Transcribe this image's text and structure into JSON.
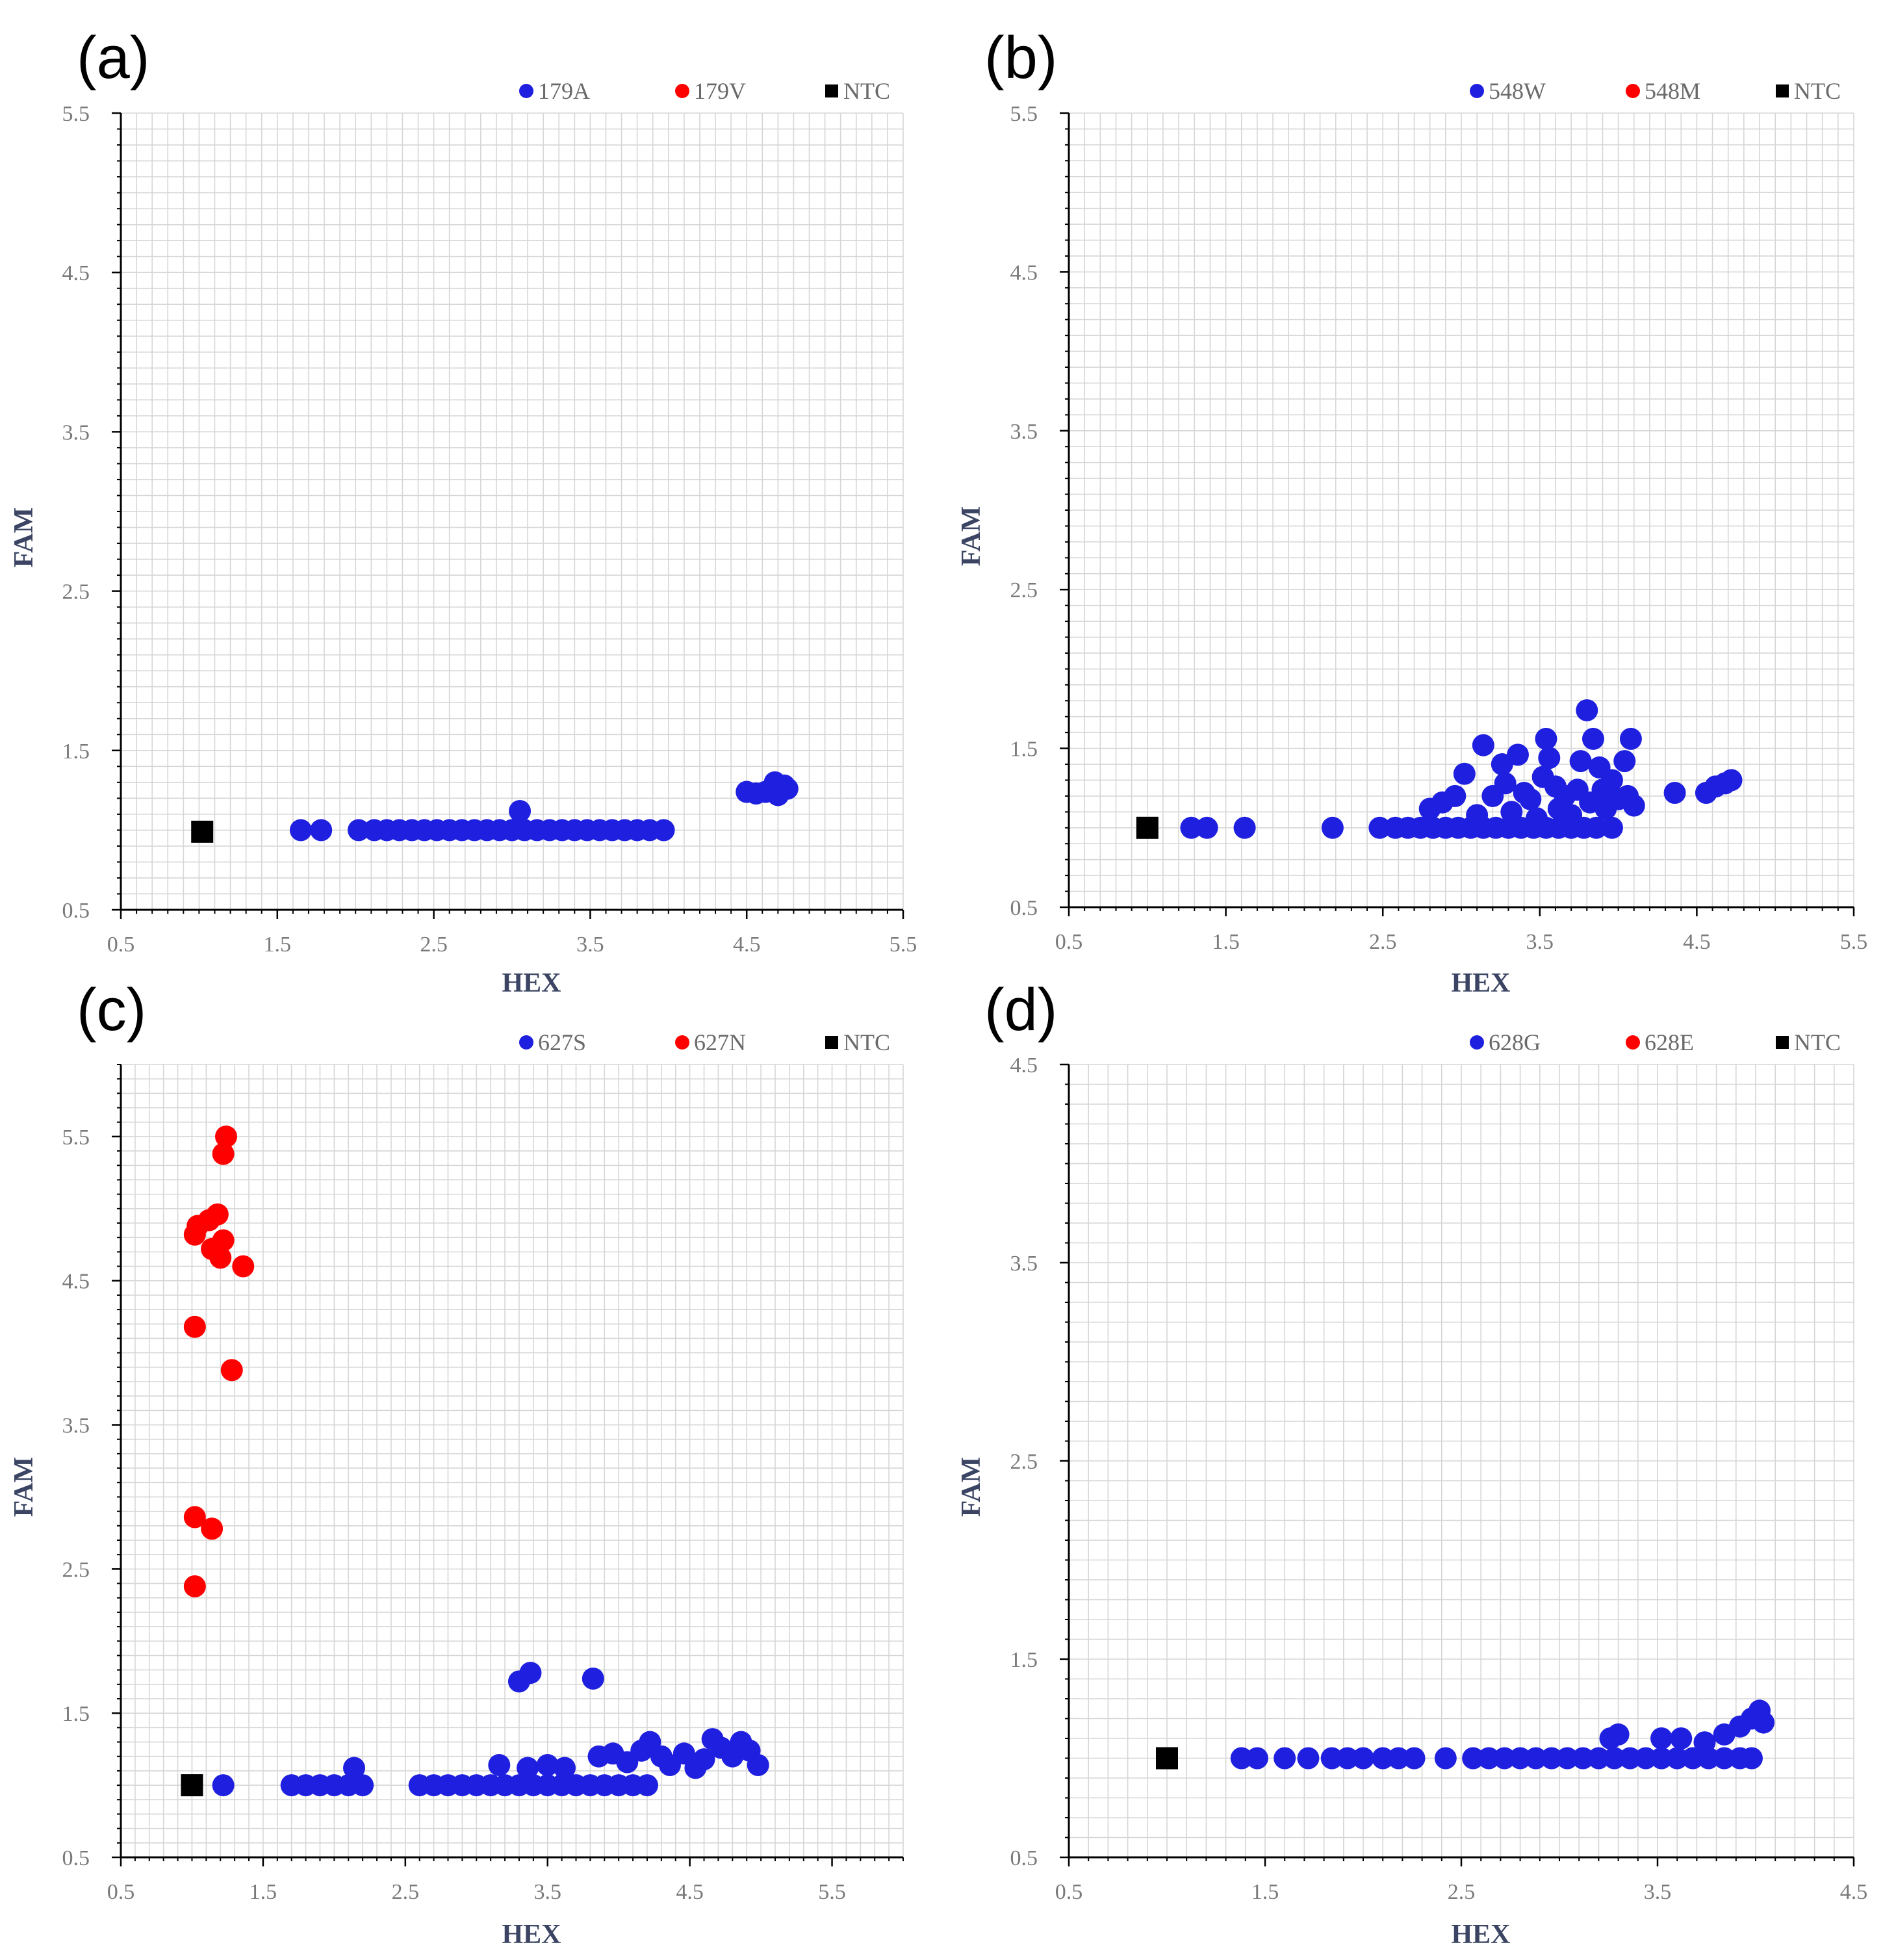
{
  "colors": {
    "series_a": "#1f1fe0",
    "series_b": "#ff0000",
    "ntc": "#000000",
    "grid": "#d6d6d6"
  },
  "chart_data": [
    {
      "type": "scatter",
      "panel_label": "(a)",
      "xlabel": "HEX",
      "ylabel": "FAM",
      "xlim": [
        0.5,
        5.5
      ],
      "ylim": [
        0.5,
        5.5
      ],
      "x_ticks": [
        "0.5",
        "1.5",
        "2.5",
        "3.5",
        "4.5",
        "5.5"
      ],
      "y_ticks": [
        "0.5",
        "1.5",
        "2.5",
        "3.5",
        "4.5",
        "5.5"
      ],
      "grid": true,
      "legend_position": "top-right",
      "legend": [
        "179A",
        "179V",
        "NTC"
      ],
      "series": [
        {
          "name": "179A",
          "marker": "circle",
          "color": "#1f1fe0",
          "points": [
            [
              1.65,
              1.0
            ],
            [
              1.78,
              1.0
            ],
            [
              2.02,
              1.0
            ],
            [
              2.12,
              1.0
            ],
            [
              2.2,
              1.0
            ],
            [
              2.28,
              1.0
            ],
            [
              2.36,
              1.0
            ],
            [
              2.44,
              1.0
            ],
            [
              2.52,
              1.0
            ],
            [
              2.6,
              1.0
            ],
            [
              2.68,
              1.0
            ],
            [
              2.76,
              1.0
            ],
            [
              2.84,
              1.0
            ],
            [
              2.92,
              1.0
            ],
            [
              3.0,
              1.0
            ],
            [
              3.08,
              1.0
            ],
            [
              3.16,
              1.0
            ],
            [
              3.24,
              1.0
            ],
            [
              3.32,
              1.0
            ],
            [
              3.4,
              1.0
            ],
            [
              3.48,
              1.0
            ],
            [
              3.56,
              1.0
            ],
            [
              3.64,
              1.0
            ],
            [
              3.72,
              1.0
            ],
            [
              3.8,
              1.0
            ],
            [
              3.88,
              1.0
            ],
            [
              3.97,
              1.0
            ],
            [
              3.05,
              1.12
            ],
            [
              4.5,
              1.24
            ],
            [
              4.56,
              1.23
            ],
            [
              4.62,
              1.24
            ],
            [
              4.66,
              1.26
            ],
            [
              4.68,
              1.3
            ],
            [
              4.7,
              1.22
            ],
            [
              4.74,
              1.28
            ],
            [
              4.76,
              1.26
            ]
          ]
        },
        {
          "name": "179V",
          "marker": "circle",
          "color": "#ff0000",
          "points": []
        },
        {
          "name": "NTC",
          "marker": "square",
          "color": "#000000",
          "points": [
            [
              1.02,
              0.99
            ]
          ]
        }
      ]
    },
    {
      "type": "scatter",
      "panel_label": "(b)",
      "xlabel": "HEX",
      "ylabel": "FAM",
      "xlim": [
        0.5,
        5.5
      ],
      "ylim": [
        0.5,
        5.5
      ],
      "x_ticks": [
        "0.5",
        "1.5",
        "2.5",
        "3.5",
        "4.5",
        "5.5"
      ],
      "y_ticks": [
        "0.5",
        "1.5",
        "2.5",
        "3.5",
        "4.5",
        "5.5"
      ],
      "grid": true,
      "legend_position": "top-right",
      "legend": [
        "548W",
        "548M",
        "NTC"
      ],
      "series": [
        {
          "name": "548W",
          "marker": "circle",
          "color": "#1f1fe0",
          "points": [
            [
              1.28,
              1.0
            ],
            [
              1.38,
              1.0
            ],
            [
              1.62,
              1.0
            ],
            [
              2.18,
              1.0
            ],
            [
              2.48,
              1.0
            ],
            [
              2.58,
              1.0
            ],
            [
              2.66,
              1.0
            ],
            [
              2.74,
              1.0
            ],
            [
              2.82,
              1.0
            ],
            [
              2.9,
              1.0
            ],
            [
              2.98,
              1.0
            ],
            [
              3.06,
              1.0
            ],
            [
              3.14,
              1.0
            ],
            [
              3.22,
              1.0
            ],
            [
              3.3,
              1.0
            ],
            [
              3.38,
              1.0
            ],
            [
              3.46,
              1.0
            ],
            [
              3.54,
              1.0
            ],
            [
              3.62,
              1.0
            ],
            [
              3.7,
              1.0
            ],
            [
              3.78,
              1.0
            ],
            [
              3.86,
              1.0
            ],
            [
              3.96,
              1.0
            ],
            [
              2.8,
              1.12
            ],
            [
              2.88,
              1.16
            ],
            [
              2.96,
              1.2
            ],
            [
              3.02,
              1.34
            ],
            [
              3.1,
              1.08
            ],
            [
              3.14,
              1.52
            ],
            [
              3.2,
              1.2
            ],
            [
              3.26,
              1.4
            ],
            [
              3.28,
              1.28
            ],
            [
              3.32,
              1.1
            ],
            [
              3.36,
              1.46
            ],
            [
              3.4,
              1.22
            ],
            [
              3.44,
              1.18
            ],
            [
              3.48,
              1.06
            ],
            [
              3.52,
              1.32
            ],
            [
              3.54,
              1.56
            ],
            [
              3.56,
              1.44
            ],
            [
              3.6,
              1.26
            ],
            [
              3.62,
              1.12
            ],
            [
              3.66,
              1.2
            ],
            [
              3.7,
              1.08
            ],
            [
              3.74,
              1.24
            ],
            [
              3.76,
              1.42
            ],
            [
              3.8,
              1.74
            ],
            [
              3.82,
              1.16
            ],
            [
              3.84,
              1.56
            ],
            [
              3.88,
              1.38
            ],
            [
              3.9,
              1.24
            ],
            [
              3.92,
              1.12
            ],
            [
              3.96,
              1.3
            ],
            [
              4.0,
              1.18
            ],
            [
              4.04,
              1.42
            ],
            [
              4.06,
              1.2
            ],
            [
              4.08,
              1.56
            ],
            [
              4.1,
              1.14
            ],
            [
              4.36,
              1.22
            ],
            [
              4.56,
              1.22
            ],
            [
              4.62,
              1.26
            ],
            [
              4.68,
              1.28
            ],
            [
              4.72,
              1.3
            ]
          ]
        },
        {
          "name": "548M",
          "marker": "circle",
          "color": "#ff0000",
          "points": []
        },
        {
          "name": "NTC",
          "marker": "square",
          "color": "#000000",
          "points": [
            [
              1.0,
              1.0
            ]
          ]
        }
      ]
    },
    {
      "type": "scatter",
      "panel_label": "(c)",
      "xlabel": "HEX",
      "ylabel": "FAM",
      "xlim": [
        0.5,
        6.0
      ],
      "ylim": [
        0.5,
        6.0
      ],
      "x_ticks": [
        "0.5",
        "1.5",
        "2.5",
        "3.5",
        "4.5",
        "5.5"
      ],
      "y_ticks": [
        "0.5",
        "1.5",
        "2.5",
        "3.5",
        "4.5",
        "5.5"
      ],
      "grid": true,
      "legend_position": "top-right",
      "legend": [
        "627S",
        "627N",
        "NTC"
      ],
      "series": [
        {
          "name": "627S",
          "marker": "circle",
          "color": "#1f1fe0",
          "points": [
            [
              1.22,
              1.0
            ],
            [
              1.7,
              1.0
            ],
            [
              1.8,
              1.0
            ],
            [
              1.9,
              1.0
            ],
            [
              2.0,
              1.0
            ],
            [
              2.1,
              1.0
            ],
            [
              2.14,
              1.12
            ],
            [
              2.2,
              1.0
            ],
            [
              2.6,
              1.0
            ],
            [
              2.7,
              1.0
            ],
            [
              2.8,
              1.0
            ],
            [
              2.9,
              1.0
            ],
            [
              3.0,
              1.0
            ],
            [
              3.1,
              1.0
            ],
            [
              3.2,
              1.0
            ],
            [
              3.3,
              1.0
            ],
            [
              3.4,
              1.0
            ],
            [
              3.5,
              1.0
            ],
            [
              3.6,
              1.0
            ],
            [
              3.7,
              1.0
            ],
            [
              3.8,
              1.0
            ],
            [
              3.9,
              1.0
            ],
            [
              4.0,
              1.0
            ],
            [
              4.1,
              1.0
            ],
            [
              4.2,
              1.0
            ],
            [
              3.16,
              1.14
            ],
            [
              3.3,
              1.72
            ],
            [
              3.38,
              1.78
            ],
            [
              3.36,
              1.12
            ],
            [
              3.5,
              1.14
            ],
            [
              3.62,
              1.12
            ],
            [
              3.82,
              1.74
            ],
            [
              3.86,
              1.2
            ],
            [
              3.96,
              1.22
            ],
            [
              4.06,
              1.16
            ],
            [
              4.16,
              1.24
            ],
            [
              4.22,
              1.3
            ],
            [
              4.3,
              1.2
            ],
            [
              4.36,
              1.14
            ],
            [
              4.46,
              1.22
            ],
            [
              4.54,
              1.12
            ],
            [
              4.6,
              1.18
            ],
            [
              4.66,
              1.32
            ],
            [
              4.72,
              1.26
            ],
            [
              4.8,
              1.2
            ],
            [
              4.86,
              1.3
            ],
            [
              4.92,
              1.24
            ],
            [
              4.98,
              1.14
            ]
          ]
        },
        {
          "name": "627N",
          "marker": "circle",
          "color": "#ff0000",
          "points": [
            [
              1.02,
              2.38
            ],
            [
              1.02,
              2.86
            ],
            [
              1.14,
              2.78
            ],
            [
              1.02,
              4.18
            ],
            [
              1.28,
              3.88
            ],
            [
              1.02,
              4.82
            ],
            [
              1.04,
              4.88
            ],
            [
              1.12,
              4.92
            ],
            [
              1.18,
              4.96
            ],
            [
              1.14,
              4.72
            ],
            [
              1.2,
              4.66
            ],
            [
              1.22,
              4.78
            ],
            [
              1.36,
              4.6
            ],
            [
              1.22,
              5.38
            ],
            [
              1.24,
              5.5
            ]
          ]
        },
        {
          "name": "NTC",
          "marker": "square",
          "color": "#000000",
          "points": [
            [
              1.0,
              1.0
            ]
          ]
        }
      ]
    },
    {
      "type": "scatter",
      "panel_label": "(d)",
      "xlabel": "HEX",
      "ylabel": "FAM",
      "xlim": [
        0.5,
        4.5
      ],
      "ylim": [
        0.5,
        4.5
      ],
      "x_ticks": [
        "0.5",
        "1.5",
        "2.5",
        "3.5",
        "4.5"
      ],
      "y_ticks": [
        "0.5",
        "1.5",
        "2.5",
        "3.5",
        "4.5"
      ],
      "grid": true,
      "legend_position": "top-right",
      "legend": [
        "628G",
        "628E",
        "NTC"
      ],
      "series": [
        {
          "name": "628G",
          "marker": "circle",
          "color": "#1f1fe0",
          "points": [
            [
              1.38,
              1.0
            ],
            [
              1.46,
              1.0
            ],
            [
              1.6,
              1.0
            ],
            [
              1.72,
              1.0
            ],
            [
              1.84,
              1.0
            ],
            [
              1.92,
              1.0
            ],
            [
              2.0,
              1.0
            ],
            [
              2.1,
              1.0
            ],
            [
              2.18,
              1.0
            ],
            [
              2.26,
              1.0
            ],
            [
              2.42,
              1.0
            ],
            [
              2.56,
              1.0
            ],
            [
              2.64,
              1.0
            ],
            [
              2.72,
              1.0
            ],
            [
              2.8,
              1.0
            ],
            [
              2.88,
              1.0
            ],
            [
              2.96,
              1.0
            ],
            [
              3.04,
              1.0
            ],
            [
              3.12,
              1.0
            ],
            [
              3.2,
              1.0
            ],
            [
              3.28,
              1.0
            ],
            [
              3.36,
              1.0
            ],
            [
              3.44,
              1.0
            ],
            [
              3.52,
              1.0
            ],
            [
              3.6,
              1.0
            ],
            [
              3.68,
              1.0
            ],
            [
              3.76,
              1.0
            ],
            [
              3.84,
              1.0
            ],
            [
              3.92,
              1.0
            ],
            [
              3.98,
              1.0
            ],
            [
              3.26,
              1.1
            ],
            [
              3.3,
              1.12
            ],
            [
              3.52,
              1.1
            ],
            [
              3.62,
              1.1
            ],
            [
              3.74,
              1.08
            ],
            [
              3.84,
              1.12
            ],
            [
              3.92,
              1.16
            ],
            [
              3.98,
              1.2
            ],
            [
              4.02,
              1.24
            ],
            [
              4.04,
              1.18
            ]
          ]
        },
        {
          "name": "628E",
          "marker": "circle",
          "color": "#ff0000",
          "points": []
        },
        {
          "name": "NTC",
          "marker": "square",
          "color": "#000000",
          "points": [
            [
              1.0,
              1.0
            ]
          ]
        }
      ]
    }
  ]
}
